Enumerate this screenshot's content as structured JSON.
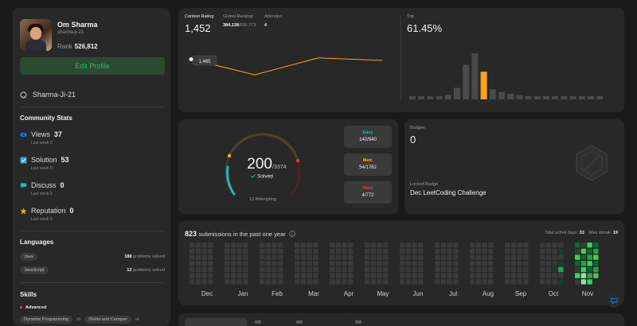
{
  "profile": {
    "name": "Om Sharma",
    "username": "sharma-ji-21",
    "rank_label": "Rank",
    "rank_value": "526,812",
    "edit_label": "Edit Profile",
    "github": "Sharma-Ji-21"
  },
  "community": {
    "title": "Community Stats",
    "items": [
      {
        "label": "Views",
        "value": "37",
        "sub": "Last week 0",
        "icon": "eye-icon",
        "color": "#0a84ff"
      },
      {
        "label": "Solution",
        "value": "53",
        "sub": "Last week 0",
        "icon": "check-square-icon",
        "color": "#2eaadc"
      },
      {
        "label": "Discuss",
        "value": "0",
        "sub": "Last week 0",
        "icon": "chat-bubble-icon",
        "color": "#2cbbb5"
      },
      {
        "label": "Reputation",
        "value": "0",
        "sub": "Last week 0",
        "icon": "star-icon",
        "color": "#ffa116"
      }
    ]
  },
  "languages": {
    "title": "Languages",
    "items": [
      {
        "name": "Java",
        "count": "188",
        "suffix": "problems solved"
      },
      {
        "name": "JavaScript",
        "count": "12",
        "suffix": "problems solved"
      }
    ]
  },
  "skills": {
    "title": "Skills",
    "level": "Advanced",
    "items": [
      {
        "name": "Dynamic Programming",
        "count": "x6"
      },
      {
        "name": "Divide and Conquer",
        "count": "x6"
      }
    ]
  },
  "contest": {
    "rating_label": "Contest Rating",
    "rating": "1,452",
    "global_label": "Global Ranking",
    "global_rank": "384,138",
    "global_total": "/630,773",
    "attended_label": "Attended",
    "attended": "4",
    "tooltip": "1,465",
    "top_label": "Top",
    "top_value": "61.45%"
  },
  "solved": {
    "count": "200",
    "total": "/3374",
    "solved_label": "Solved",
    "attempting": "12 Attempting",
    "easy": {
      "label": "Easy",
      "value": "142/840",
      "color": "#1cbaba"
    },
    "medium": {
      "label": "Med.",
      "value": "54/1762",
      "color": "#ffb700"
    },
    "hard": {
      "label": "Hard",
      "value": "4/772",
      "color": "#f63737"
    }
  },
  "badges": {
    "label": "Badges",
    "count": "0",
    "locked_label": "Locked Badge",
    "locked_name": "Dec LeetCoding Challenge"
  },
  "submissions": {
    "count": "823",
    "text": "submissions in the past one year",
    "active_label": "Total active days:",
    "active": "33",
    "streak_label": "Max streak:",
    "streak": "19",
    "months": [
      "Dec",
      "Jan",
      "Feb",
      "Mar",
      "Apr",
      "May",
      "Jun",
      "Jul",
      "Aug",
      "Sep",
      "Oct",
      "Nov"
    ]
  },
  "chart_data": [
    {
      "type": "line",
      "title": "Contest Rating",
      "x": [
        1,
        2,
        3,
        4
      ],
      "values": [
        1465,
        1300,
        1480,
        1452
      ],
      "color": "#ffa116"
    },
    {
      "type": "bar",
      "title": "Top",
      "values": [
        2,
        2,
        2,
        3,
        10,
        25,
        75,
        100,
        60,
        22,
        16,
        12,
        9,
        7,
        5,
        4,
        3,
        2,
        2,
        2,
        2,
        2
      ],
      "highlight_index": 8,
      "highlight_color": "#ffa116",
      "base_color": "#4a4a4a"
    }
  ]
}
